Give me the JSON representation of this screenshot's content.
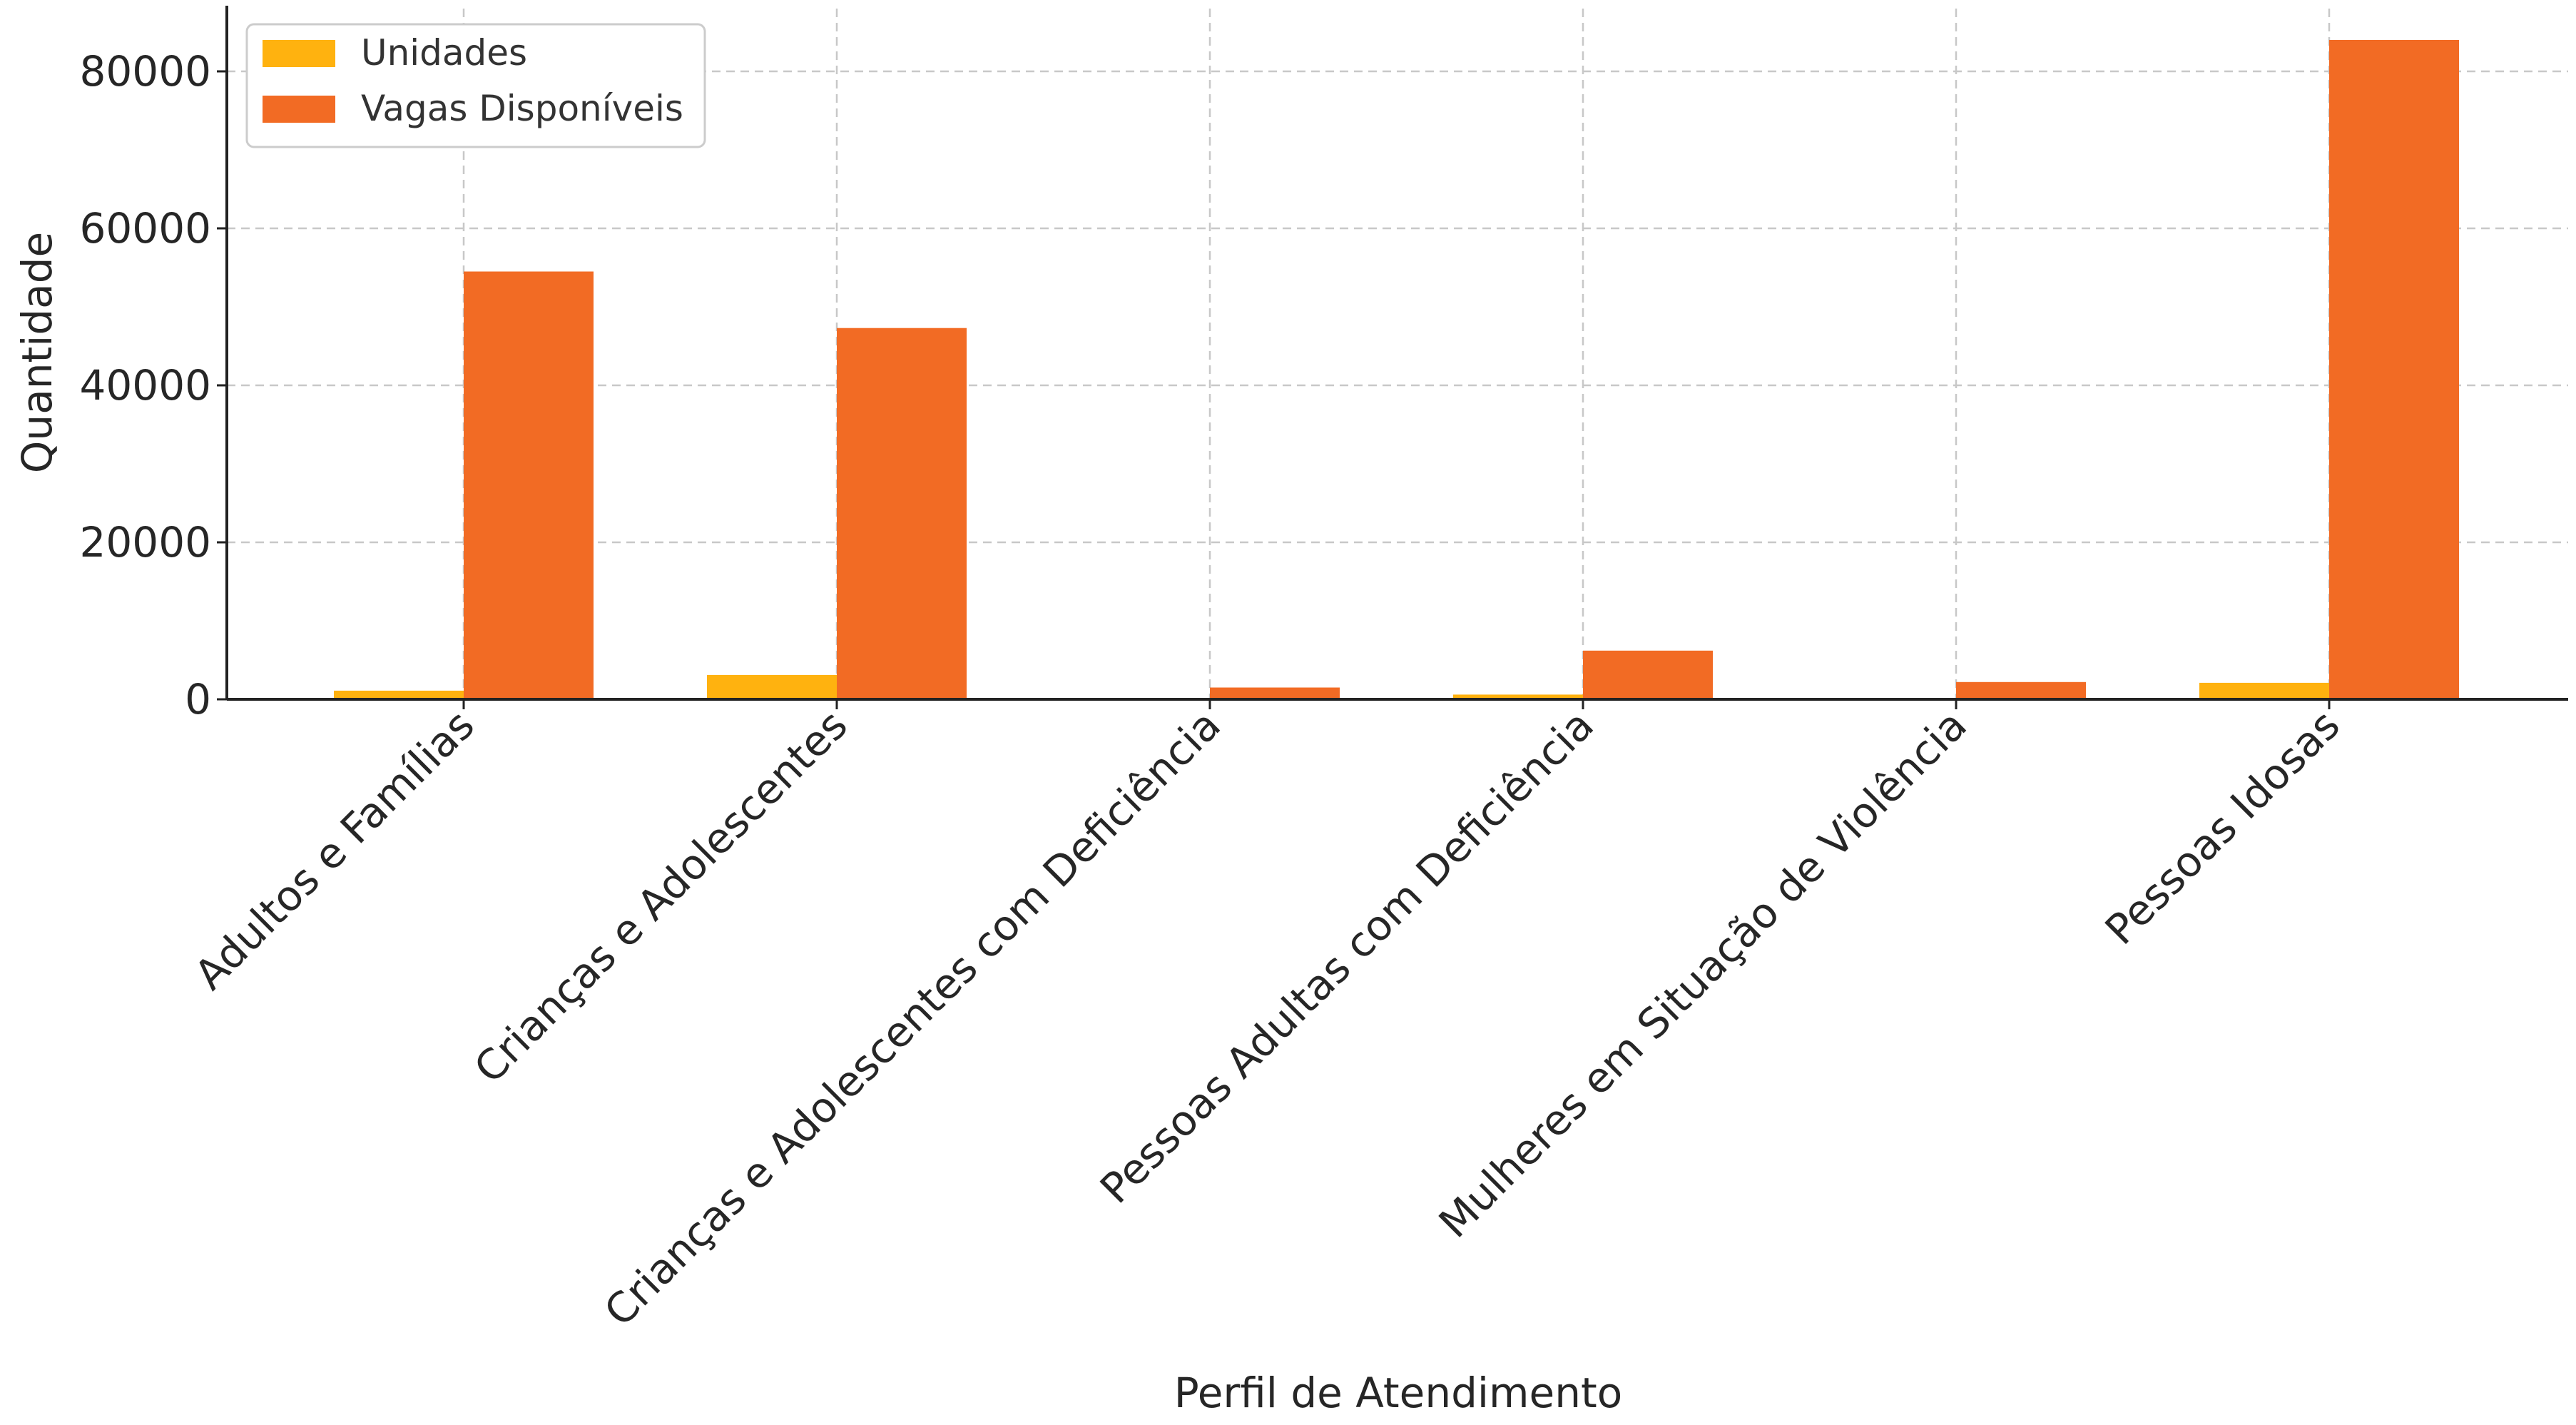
{
  "chart_data": {
    "type": "bar",
    "title": "",
    "xlabel": "Perfil de Atendimento",
    "ylabel": "Quantidade",
    "categories": [
      "Adultos e Famílias",
      "Crianças e Adolescentes",
      "Crianças e Adolescentes com Deficiência",
      "Pessoas Adultas com Deficiência",
      "Mulheres em Situação de Violência",
      "Pessoas Idosas"
    ],
    "series": [
      {
        "name": "Unidades",
        "color": "#ffb20f",
        "values": [
          1100,
          3100,
          150,
          600,
          120,
          2100
        ]
      },
      {
        "name": "Vagas Disponíveis",
        "color": "#f26b24",
        "values": [
          54500,
          47300,
          1500,
          6200,
          2200,
          84000
        ]
      }
    ],
    "ylim": [
      0,
      88000
    ],
    "yticks": [
      0,
      20000,
      40000,
      60000,
      80000
    ],
    "grid": true,
    "legend_position": "top-left"
  }
}
